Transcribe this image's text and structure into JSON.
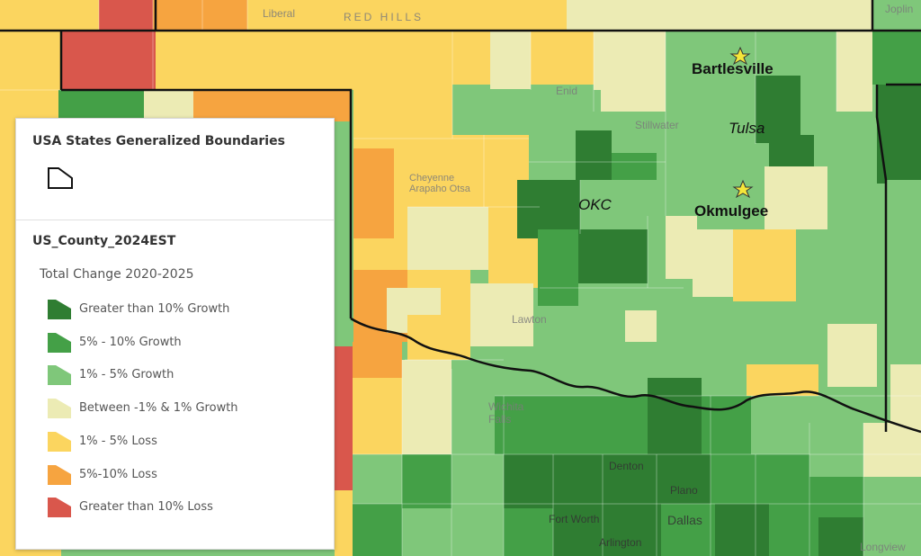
{
  "legend": {
    "layer1_title": "USA States Generalized Boundaries",
    "layer2_title": "US_County_2024EST",
    "field_title": "Total Change 2020-2025",
    "items": [
      {
        "label": "Greater than 10% Growth",
        "color": "#2f7d32"
      },
      {
        "label": "5% - 10% Growth",
        "color": "#44a047"
      },
      {
        "label": "1% - 5% Growth",
        "color": "#7fc77a"
      },
      {
        "label": "Between -1% & 1% Growth",
        "color": "#ecebb4"
      },
      {
        "label": "1% - 5% Loss",
        "color": "#fbd55f"
      },
      {
        "label": "5%-10% Loss",
        "color": "#f6a440"
      },
      {
        "label": "Greater than 10% Loss",
        "color": "#d9574c"
      }
    ]
  },
  "cities": {
    "bartlesville": "Bartlesville",
    "tulsa": "Tulsa",
    "okc": "OKC",
    "okmulgee": "Okmulgee"
  },
  "basemap_labels": {
    "liberal": "Liberal",
    "red_hills": "RED HILLS",
    "joplin": "Joplin",
    "enid": "Enid",
    "stillwater": "Stillwater",
    "cheyenne": "Cheyenne\nArapaho Otsa",
    "lawton": "Lawton",
    "wichita_falls": "Wichita\nFalls",
    "denton": "Denton",
    "plano": "Plano",
    "fort_worth": "Fort Worth",
    "dallas": "Dallas",
    "arlington": "Arlington",
    "longview": "Longview"
  },
  "colors": {
    "state_boundary": "#111111",
    "star": "#f5e63a"
  }
}
